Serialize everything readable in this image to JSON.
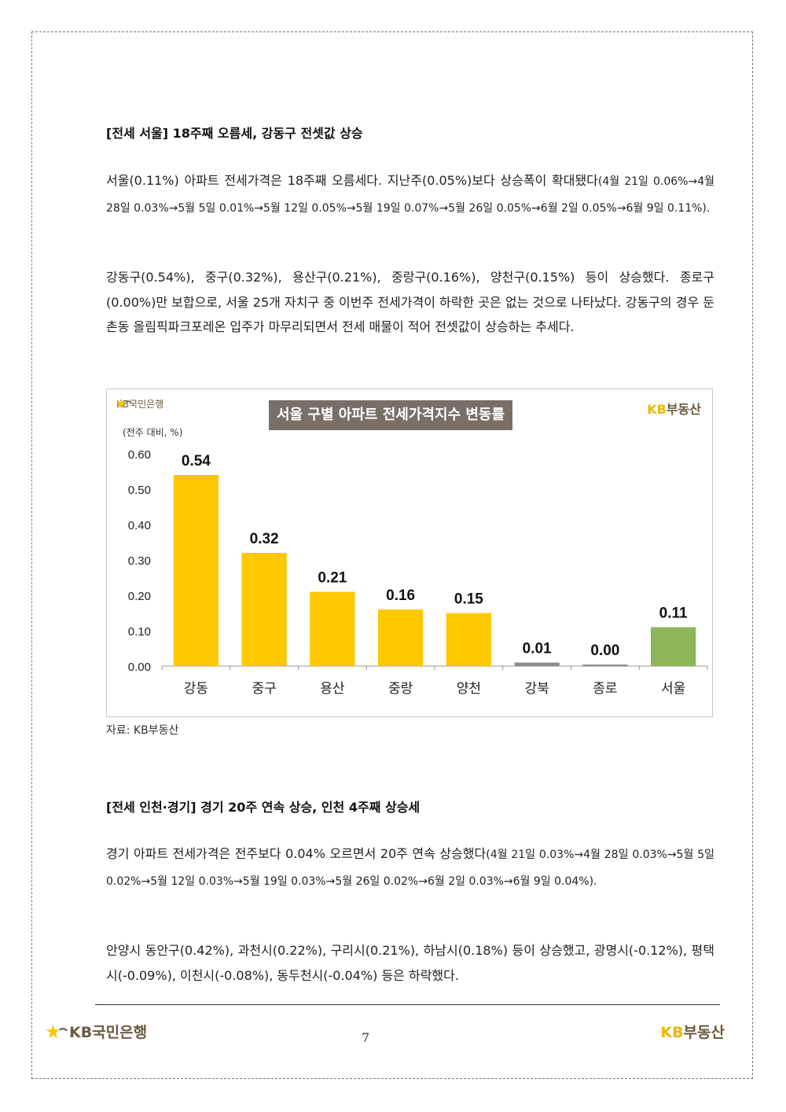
{
  "section1": {
    "heading": "[전세 서울] 18주째 오름세, 강동구 전셋값 상승",
    "para1_main": "서울(0.11%) 아파트 전세가격은 18주째 오름세다. 지난주(0.05%)보다 상승폭이 확대됐다",
    "para1_detail": "(4월 21일 0.06%→4월 28일 0.03%→5월 5일 0.01%→5월 12일 0.05%→5월 19일 0.07%→5월 26일 0.05%→6월 2일 0.05%→6월 9일 0.11%).",
    "para2": "강동구(0.54%), 중구(0.32%), 용산구(0.21%), 중랑구(0.16%), 양천구(0.15%) 등이 상승했다. 종로구(0.00%)만 보합으로, 서울 25개 자치구 중 이번주 전세가격이 하락한 곳은 없는 것으로 나타났다. 강동구의 경우 둔촌동 올림픽파크포레온 입주가 마무리되면서 전세 매물이 적어 전셋값이 상승하는 추세다."
  },
  "chart": {
    "logo_left": "KB국민은행",
    "logo_right_kb": "KB",
    "logo_right_rest": "부동산",
    "title": "서울 구별 아파트 전세가격지수 변동률",
    "unit": "(전주 대비, %)"
  },
  "chart_data": {
    "type": "bar",
    "title": "서울 구별 아파트 전세가격지수 변동률",
    "ylabel": "(전주 대비, %)",
    "xlabel": "",
    "categories": [
      "강동",
      "중구",
      "용산",
      "중랑",
      "양천",
      "강북",
      "종로",
      "서울"
    ],
    "values": [
      0.54,
      0.32,
      0.21,
      0.16,
      0.15,
      0.01,
      0.0,
      0.11
    ],
    "value_labels": [
      "0.54",
      "0.32",
      "0.21",
      "0.16",
      "0.15",
      "0.01",
      "0.00",
      "0.11"
    ],
    "bar_colors": [
      "#ffc800",
      "#ffc800",
      "#ffc800",
      "#ffc800",
      "#ffc800",
      "#8c8c8c",
      "#8c8c8c",
      "#8db55a"
    ],
    "ylim": [
      0,
      0.6
    ],
    "yticks": [
      "0.00",
      "0.10",
      "0.20",
      "0.30",
      "0.40",
      "0.50",
      "0.60"
    ],
    "grid": false,
    "legend": "none"
  },
  "source": "자료: KB부동산",
  "section2": {
    "heading": "[전세 인천·경기] 경기 20주 연속 상승, 인천 4주째 상승세",
    "para1_main": "경기 아파트 전세가격은 전주보다 0.04% 오르면서 20주 연속 상승했다",
    "para1_detail": "(4월 21일 0.03%→4월 28일 0.03%→5월 5일 0.02%→5월 12일 0.03%→5월 19일 0.03%→5월 26일 0.02%→6월 2일 0.03%→6월 9일 0.04%).",
    "para2": "안양시 동안구(0.42%), 과천시(0.22%), 구리시(0.21%), 하남시(0.18%) 등이 상승했고, 광명시(-0.12%), 평택시(-0.09%), 이천시(-0.08%), 동두천시(-0.04%) 등은 하락했다."
  },
  "footer": {
    "logo_left": "KB국민은행",
    "page_number": "7",
    "logo_right_kb": "KB",
    "logo_right_rest": "부동산"
  },
  "colors": {
    "kb_yellow": "#ffc800",
    "kb_brown": "#6b5a3e",
    "title_bg": "#786f66",
    "seoul_green": "#8db55a",
    "gray_bar": "#8c8c8c"
  }
}
